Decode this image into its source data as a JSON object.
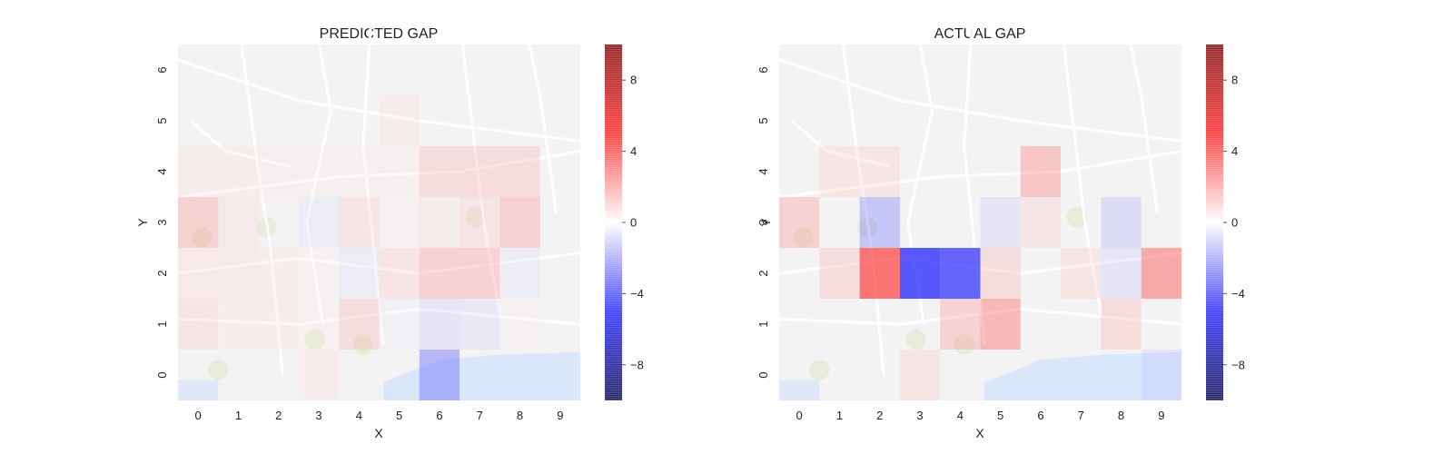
{
  "chart_data": [
    {
      "type": "heatmap",
      "title": "PREDICTED GAP",
      "xlabel": "X",
      "ylabel": "Y",
      "x_ticks": [
        "0",
        "1",
        "2",
        "3",
        "4",
        "5",
        "6",
        "7",
        "8",
        "9"
      ],
      "y_ticks": [
        "0",
        "1",
        "2",
        "3",
        "4",
        "5",
        "6"
      ],
      "x_range": [
        -0.5,
        9.5
      ],
      "y_range": [
        -0.5,
        6.5
      ],
      "background": "street map of Porto",
      "colormap": "seismic",
      "color_range": [
        -10,
        10
      ],
      "colorbar_ticks": [
        "8",
        "4",
        "0",
        "−4",
        "−8"
      ],
      "colorbar_values": [
        8,
        4,
        0,
        -4,
        -8
      ],
      "cells": [
        {
          "x": 0,
          "y": 4,
          "value": 1.0
        },
        {
          "x": 1,
          "y": 4,
          "value": 1.0
        },
        {
          "x": 2,
          "y": 4,
          "value": 0.8
        },
        {
          "x": 3,
          "y": 4,
          "value": 0.7
        },
        {
          "x": 4,
          "y": 4,
          "value": 0.6
        },
        {
          "x": 5,
          "y": 4,
          "value": 0.7
        },
        {
          "x": 6,
          "y": 4,
          "value": 2.0
        },
        {
          "x": 7,
          "y": 4,
          "value": 2.0
        },
        {
          "x": 8,
          "y": 4,
          "value": 2.0
        },
        {
          "x": 5,
          "y": 5,
          "value": 1.0
        },
        {
          "x": 0,
          "y": 3,
          "value": 2.5
        },
        {
          "x": 1,
          "y": 3,
          "value": 1.2
        },
        {
          "x": 2,
          "y": 3,
          "value": 0.3
        },
        {
          "x": 3,
          "y": 3,
          "value": -1.0
        },
        {
          "x": 4,
          "y": 3,
          "value": 1.5
        },
        {
          "x": 5,
          "y": 3,
          "value": 0.5
        },
        {
          "x": 6,
          "y": 3,
          "value": 1.0
        },
        {
          "x": 7,
          "y": 3,
          "value": 1.5
        },
        {
          "x": 8,
          "y": 3,
          "value": 2.5
        },
        {
          "x": 0,
          "y": 2,
          "value": 1.2
        },
        {
          "x": 1,
          "y": 2,
          "value": 1.2
        },
        {
          "x": 2,
          "y": 2,
          "value": 1.0
        },
        {
          "x": 3,
          "y": 2,
          "value": 0.5
        },
        {
          "x": 4,
          "y": 2,
          "value": -1.0
        },
        {
          "x": 5,
          "y": 2,
          "value": 1.5
        },
        {
          "x": 6,
          "y": 2,
          "value": 2.5
        },
        {
          "x": 7,
          "y": 2,
          "value": 2.5
        },
        {
          "x": 8,
          "y": 2,
          "value": -1.0
        },
        {
          "x": 0,
          "y": 1,
          "value": 1.5
        },
        {
          "x": 1,
          "y": 1,
          "value": 1.0
        },
        {
          "x": 2,
          "y": 1,
          "value": 1.0
        },
        {
          "x": 3,
          "y": 1,
          "value": 0.5
        },
        {
          "x": 4,
          "y": 1,
          "value": 2.0
        },
        {
          "x": 5,
          "y": 1,
          "value": -0.5
        },
        {
          "x": 6,
          "y": 1,
          "value": -1.5
        },
        {
          "x": 7,
          "y": 1,
          "value": -1.2
        },
        {
          "x": 8,
          "y": 1,
          "value": 0.5
        },
        {
          "x": 3,
          "y": 0,
          "value": 1.0
        },
        {
          "x": 6,
          "y": 0,
          "value": -3.5
        }
      ]
    },
    {
      "type": "heatmap",
      "title": "ACTUAL GAP",
      "xlabel": "X",
      "ylabel": "Y",
      "x_ticks": [
        "0",
        "1",
        "2",
        "3",
        "4",
        "5",
        "6",
        "7",
        "8",
        "9"
      ],
      "y_ticks": [
        "0",
        "1",
        "2",
        "3",
        "4",
        "5",
        "6"
      ],
      "x_range": [
        -0.5,
        9.5
      ],
      "y_range": [
        -0.5,
        6.5
      ],
      "background": "street map of Porto",
      "colormap": "seismic",
      "color_range": [
        -10,
        10
      ],
      "colorbar_ticks": [
        "8",
        "4",
        "0",
        "−4",
        "−8"
      ],
      "colorbar_values": [
        8,
        4,
        0,
        -4,
        -8
      ],
      "cells": [
        {
          "x": 1,
          "y": 4,
          "value": 1.5
        },
        {
          "x": 2,
          "y": 4,
          "value": 1.5
        },
        {
          "x": 6,
          "y": 4,
          "value": 3.0
        },
        {
          "x": 0,
          "y": 3,
          "value": 2.5
        },
        {
          "x": 2,
          "y": 3,
          "value": -3.0
        },
        {
          "x": 5,
          "y": 3,
          "value": -1.5
        },
        {
          "x": 6,
          "y": 3,
          "value": 1.5
        },
        {
          "x": 8,
          "y": 3,
          "value": -2.0
        },
        {
          "x": 1,
          "y": 2,
          "value": 2.0
        },
        {
          "x": 2,
          "y": 2,
          "value": 6.0
        },
        {
          "x": 3,
          "y": 2,
          "value": -8.0
        },
        {
          "x": 4,
          "y": 2,
          "value": -7.0
        },
        {
          "x": 5,
          "y": 2,
          "value": 2.0
        },
        {
          "x": 7,
          "y": 2,
          "value": 1.5
        },
        {
          "x": 8,
          "y": 2,
          "value": -1.5
        },
        {
          "x": 9,
          "y": 2,
          "value": 4.0
        },
        {
          "x": 4,
          "y": 1,
          "value": 2.5
        },
        {
          "x": 5,
          "y": 1,
          "value": 3.5
        },
        {
          "x": 8,
          "y": 1,
          "value": 2.0
        },
        {
          "x": 3,
          "y": 0,
          "value": 1.5
        },
        {
          "x": 9,
          "y": 0,
          "value": -1.5
        }
      ]
    }
  ]
}
